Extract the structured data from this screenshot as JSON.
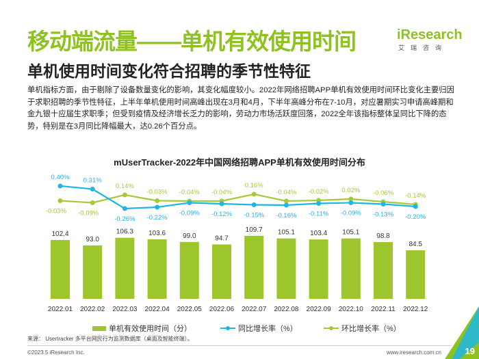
{
  "header": {
    "title": "移动端流量——单机有效使用时间",
    "subtitle": "单机使用时间变化符合招聘的季节性特征",
    "logo_brand": "iResearch",
    "logo_cn": "艾瑞咨询"
  },
  "body_text": "单机指标方面，由于剔除了设备数量变化的影响，其变化幅度较小。2022年网络招聘APP单机有效使用时间环比变化主要归因于求职招聘的季节性特征，上半年单机使用时间高峰出现在3月和4月，下半年高峰分布在7-10月，对应暑期实习申请高峰期和金九银十应届生求职季；但受到疫情及经济增长乏力的影响，劳动力市场活跃度回落，2022全年该指标整体呈同比下降的态势，特别是在3月同比降幅最大，达0.26个百分点。",
  "chart_data": {
    "type": "bar+line",
    "title": "mUserTracker-2022年中国网络招聘APP单机有效使用时间分布",
    "categories": [
      "2022.01",
      "2022.02",
      "2022.03",
      "2022.04",
      "2022.05",
      "2022.06",
      "2022.07",
      "2022.08",
      "2022.09",
      "2022.10",
      "2022.11",
      "2022.12"
    ],
    "series": [
      {
        "name": "单机有效使用时间（分）",
        "type": "bar",
        "color": "#9dc62d",
        "values": [
          102.4,
          93.0,
          106.3,
          103.6,
          99.0,
          94.7,
          109.7,
          105.1,
          103.4,
          105.1,
          98.8,
          84.5
        ],
        "labels": [
          "102.4",
          "93.0",
          "106.3",
          "103.6",
          "99.0",
          "94.7",
          "109.7",
          "105.1",
          "103.4",
          "105.1",
          "98.8",
          "84.5"
        ]
      },
      {
        "name": "同比增长率（%）",
        "type": "line",
        "color": "#1fb6e6",
        "values": [
          0.4,
          0.31,
          -0.26,
          -0.22,
          -0.09,
          -0.12,
          -0.15,
          -0.16,
          -0.11,
          -0.09,
          -0.13,
          -0.2
        ],
        "labels": [
          "0.40%",
          "0.31%",
          "-0.26%",
          "-0.22%",
          "-0.09%",
          "-0.12%",
          "-0.15%",
          "-0.16%",
          "-0.11%",
          "-0.09%",
          "-0.13%",
          "-0.20%"
        ]
      },
      {
        "name": "环比增长率（%）",
        "type": "line",
        "color": "#a6c93a",
        "values": [
          -0.03,
          -0.09,
          0.14,
          -0.03,
          -0.04,
          -0.04,
          0.16,
          -0.04,
          -0.02,
          0.02,
          -0.06,
          -0.14
        ],
        "labels": [
          "-0.03%",
          "-0.09%",
          "0.14%",
          "-0.03%",
          "-0.04%",
          "-0.04%",
          "0.16%",
          "-0.04%",
          "-0.02%",
          "0.02%",
          "-0.06%",
          "-0.14%"
        ]
      }
    ],
    "legend": "bottom"
  },
  "footer": {
    "source": "来源： Usertracker 多平台网民行为监测数据库（桌面及智能终端）。",
    "copyright": "©2023.5 iResearch Inc.",
    "url": "www.iresearch.com.cn",
    "page": "19"
  }
}
